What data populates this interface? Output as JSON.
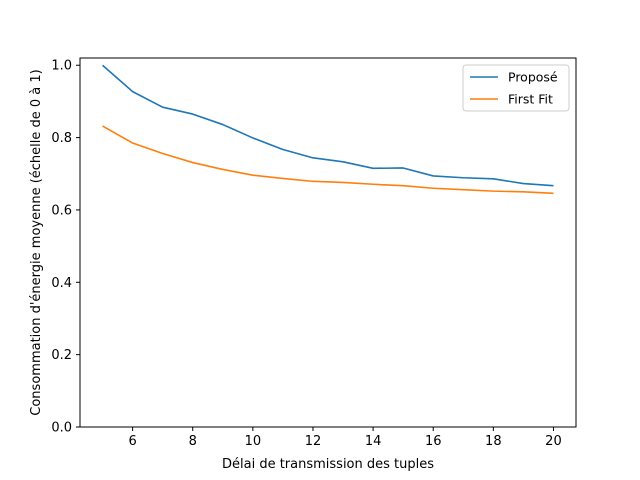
{
  "chart_data": {
    "type": "line",
    "title": "",
    "xlabel": "Délai de transmission des tuples",
    "ylabel": "Consommation d'énergie moyenne (échelle de 0 à 1)",
    "xlim": [
      4.25,
      20.75
    ],
    "ylim": [
      0.0,
      1.02
    ],
    "xticks": [
      6,
      8,
      10,
      12,
      14,
      16,
      18,
      20
    ],
    "yticks": [
      0.0,
      0.2,
      0.4,
      0.6,
      0.8,
      1.0
    ],
    "xtick_labels": [
      "6",
      "8",
      "10",
      "12",
      "14",
      "16",
      "18",
      "20"
    ],
    "ytick_labels": [
      "0.0",
      "0.2",
      "0.4",
      "0.6",
      "0.8",
      "1.0"
    ],
    "grid": false,
    "legend_position": "top-right",
    "x": [
      5,
      6,
      7,
      8,
      9,
      10,
      11,
      12,
      13,
      14,
      15,
      16,
      17,
      18,
      19,
      20
    ],
    "series": [
      {
        "name": "Proposé",
        "color": "#1f77b4",
        "values": [
          1.0,
          0.927,
          0.884,
          0.865,
          0.836,
          0.799,
          0.767,
          0.744,
          0.733,
          0.715,
          0.716,
          0.694,
          0.689,
          0.686,
          0.673,
          0.667
        ]
      },
      {
        "name": "First Fit",
        "color": "#ff7f0e",
        "values": [
          0.832,
          0.785,
          0.756,
          0.731,
          0.712,
          0.696,
          0.687,
          0.679,
          0.676,
          0.671,
          0.667,
          0.66,
          0.656,
          0.652,
          0.65,
          0.646
        ]
      }
    ]
  }
}
